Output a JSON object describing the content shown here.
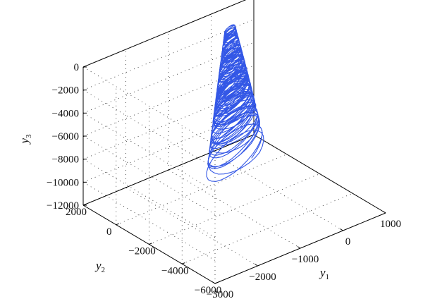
{
  "chart_data": {
    "type": "line3d",
    "title": "",
    "axes": {
      "x": {
        "label": "y",
        "label_sub": "1",
        "range": [
          -3000,
          1000
        ],
        "ticks": [
          -3000,
          -2000,
          -1000,
          0,
          1000
        ],
        "tick_labels": [
          "−3000",
          "−2000",
          "−1000",
          "0",
          "1000"
        ]
      },
      "y": {
        "label": "y",
        "label_sub": "2",
        "range": [
          -6000,
          2000
        ],
        "ticks": [
          -6000,
          -4000,
          -2000,
          0,
          2000
        ],
        "tick_labels": [
          "−6000",
          "−4000",
          "−2000",
          "0",
          "2000"
        ]
      },
      "z": {
        "label": "y",
        "label_sub": "3",
        "range": [
          -12000,
          0
        ],
        "ticks": [
          -12000,
          -10000,
          -8000,
          -6000,
          -4000,
          -2000,
          0
        ],
        "tick_labels": [
          "−12000",
          "−10000",
          "−8000",
          "−6000",
          "−4000",
          "−2000",
          "0"
        ]
      }
    },
    "grid": true,
    "series": [
      {
        "color": "#3357e6",
        "description_points": "chaotic trajectory spiralling from near (0, 0, 0) down toward about (-1500, -4000, -11500)"
      }
    ]
  }
}
